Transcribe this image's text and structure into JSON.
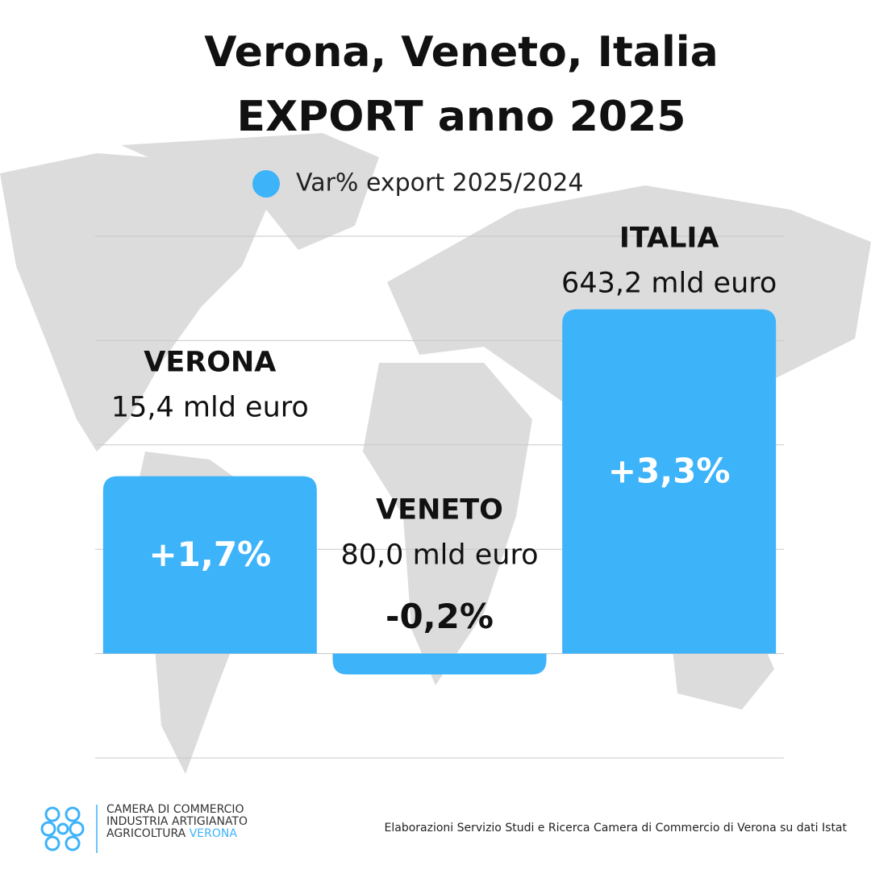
{
  "chart_data": {
    "type": "bar",
    "title": "Verona, Veneto, Italia",
    "subtitle": "EXPORT anno 2025",
    "categories": [
      "VERONA",
      "VENETO",
      "ITALIA"
    ],
    "category_notes": [
      "15,4 mld euro",
      "80,0 mld euro",
      "643,2 mld euro"
    ],
    "series": [
      {
        "name": "Var% export 2025/2024",
        "color": "#3db3f9",
        "values": [
          1.7,
          -0.2,
          3.3
        ],
        "value_labels": [
          "+1,7%",
          "-0,2%",
          "+3,3%"
        ]
      }
    ],
    "ylim": [
      -1,
      4
    ],
    "yticks": [
      -1,
      0,
      1,
      2,
      3,
      4
    ],
    "grid": true
  },
  "footer": {
    "source": "Elaborazioni Servizio Studi e Ricerca Camera di Commercio di Verona su dati Istat",
    "logo": {
      "line1": "CAMERA DI COMMERCIO",
      "line2": "INDUSTRIA ARTIGIANATO",
      "line3": "AGRICOLTURA",
      "line3_highlight": "VERONA"
    }
  }
}
